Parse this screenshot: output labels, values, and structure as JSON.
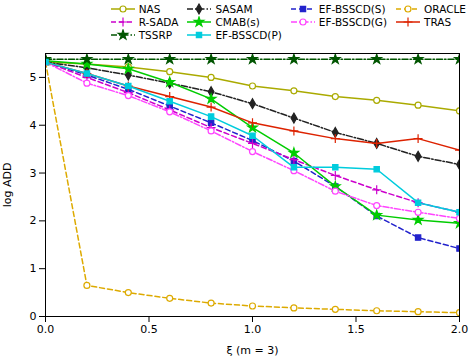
{
  "chart_data": {
    "type": "line",
    "xlabel": "ξ (m = 3)",
    "ylabel": "log ADD",
    "xlim": [
      0,
      2
    ],
    "ylim": [
      0,
      5.5
    ],
    "xticks": [
      {
        "value": 0,
        "label": "0.0"
      },
      {
        "value": 0.5,
        "label": "0.5"
      },
      {
        "value": 1,
        "label": "1.0"
      },
      {
        "value": 1.5,
        "label": "1.5"
      },
      {
        "value": 2,
        "label": "2.0"
      }
    ],
    "yticks": [
      0,
      1,
      2,
      3,
      4,
      5
    ],
    "grid": false,
    "legend": "upper right",
    "x": [
      0,
      0.2,
      0.4,
      0.6,
      0.8,
      1.0,
      1.2,
      1.4,
      1.6,
      1.8,
      2.0
    ],
    "series": [
      {
        "name": "NAS",
        "color": "#aaaa00",
        "line_style": "solid",
        "marker": "open_circle",
        "values": [
          5.32,
          5.28,
          5.22,
          5.12,
          5.0,
          4.82,
          4.72,
          4.6,
          4.52,
          4.42,
          4.3
        ]
      },
      {
        "name": "SASAM",
        "color": "#222222",
        "line_style": "dashdot",
        "marker": "diamond",
        "values": [
          5.32,
          5.2,
          5.05,
          4.88,
          4.7,
          4.45,
          4.15,
          3.85,
          3.62,
          3.35,
          3.18
        ]
      },
      {
        "name": "EF-BSSCD(S)",
        "color": "#2222cc",
        "line_style": "dashed",
        "marker": "square",
        "values": [
          5.32,
          5.05,
          4.75,
          4.4,
          4.05,
          3.68,
          3.25,
          2.72,
          2.1,
          1.65,
          1.42
        ]
      },
      {
        "name": "ORACLE",
        "color": "#ddaa00",
        "line_style": "dashed",
        "marker": "open_circle",
        "values": [
          5.32,
          0.65,
          0.5,
          0.38,
          0.28,
          0.22,
          0.18,
          0.15,
          0.12,
          0.1,
          0.08
        ]
      },
      {
        "name": "R-SADA",
        "color": "#cc00cc",
        "line_style": "dashed",
        "marker": "plus",
        "values": [
          5.32,
          5.0,
          4.68,
          4.32,
          3.95,
          3.62,
          3.28,
          2.95,
          2.65,
          2.38,
          2.18
        ]
      },
      {
        "name": "CMAB(s)",
        "color": "#00cc00",
        "line_style": "solid",
        "marker": "star",
        "values": [
          5.35,
          5.28,
          5.18,
          4.9,
          4.55,
          3.95,
          3.42,
          2.72,
          2.12,
          2.02,
          1.95
        ]
      },
      {
        "name": "EF-BSSCD(G)",
        "color": "#ff44ff",
        "line_style": "dashdot",
        "marker": "open_circle",
        "values": [
          5.32,
          4.88,
          4.62,
          4.28,
          3.88,
          3.45,
          3.05,
          2.62,
          2.32,
          2.18,
          2.05
        ]
      },
      {
        "name": "TRAS",
        "color": "#dd2200",
        "line_style": "solid",
        "marker": "plus",
        "values": [
          5.32,
          5.08,
          4.82,
          4.6,
          4.38,
          4.05,
          3.88,
          3.72,
          3.62,
          3.72,
          3.48
        ]
      },
      {
        "name": "TSSRP",
        "color": "#005500",
        "line_style": "dashdot",
        "marker": "star",
        "values": [
          5.38,
          5.38,
          5.38,
          5.38,
          5.38,
          5.38,
          5.38,
          5.38,
          5.38,
          5.38,
          5.38
        ]
      },
      {
        "name": "EF-BSSCD(P)",
        "color": "#00ccdd",
        "line_style": "solid",
        "marker": "square",
        "values": [
          5.32,
          5.08,
          4.82,
          4.5,
          4.18,
          3.78,
          3.12,
          3.12,
          3.08,
          2.38,
          2.18
        ]
      }
    ]
  }
}
